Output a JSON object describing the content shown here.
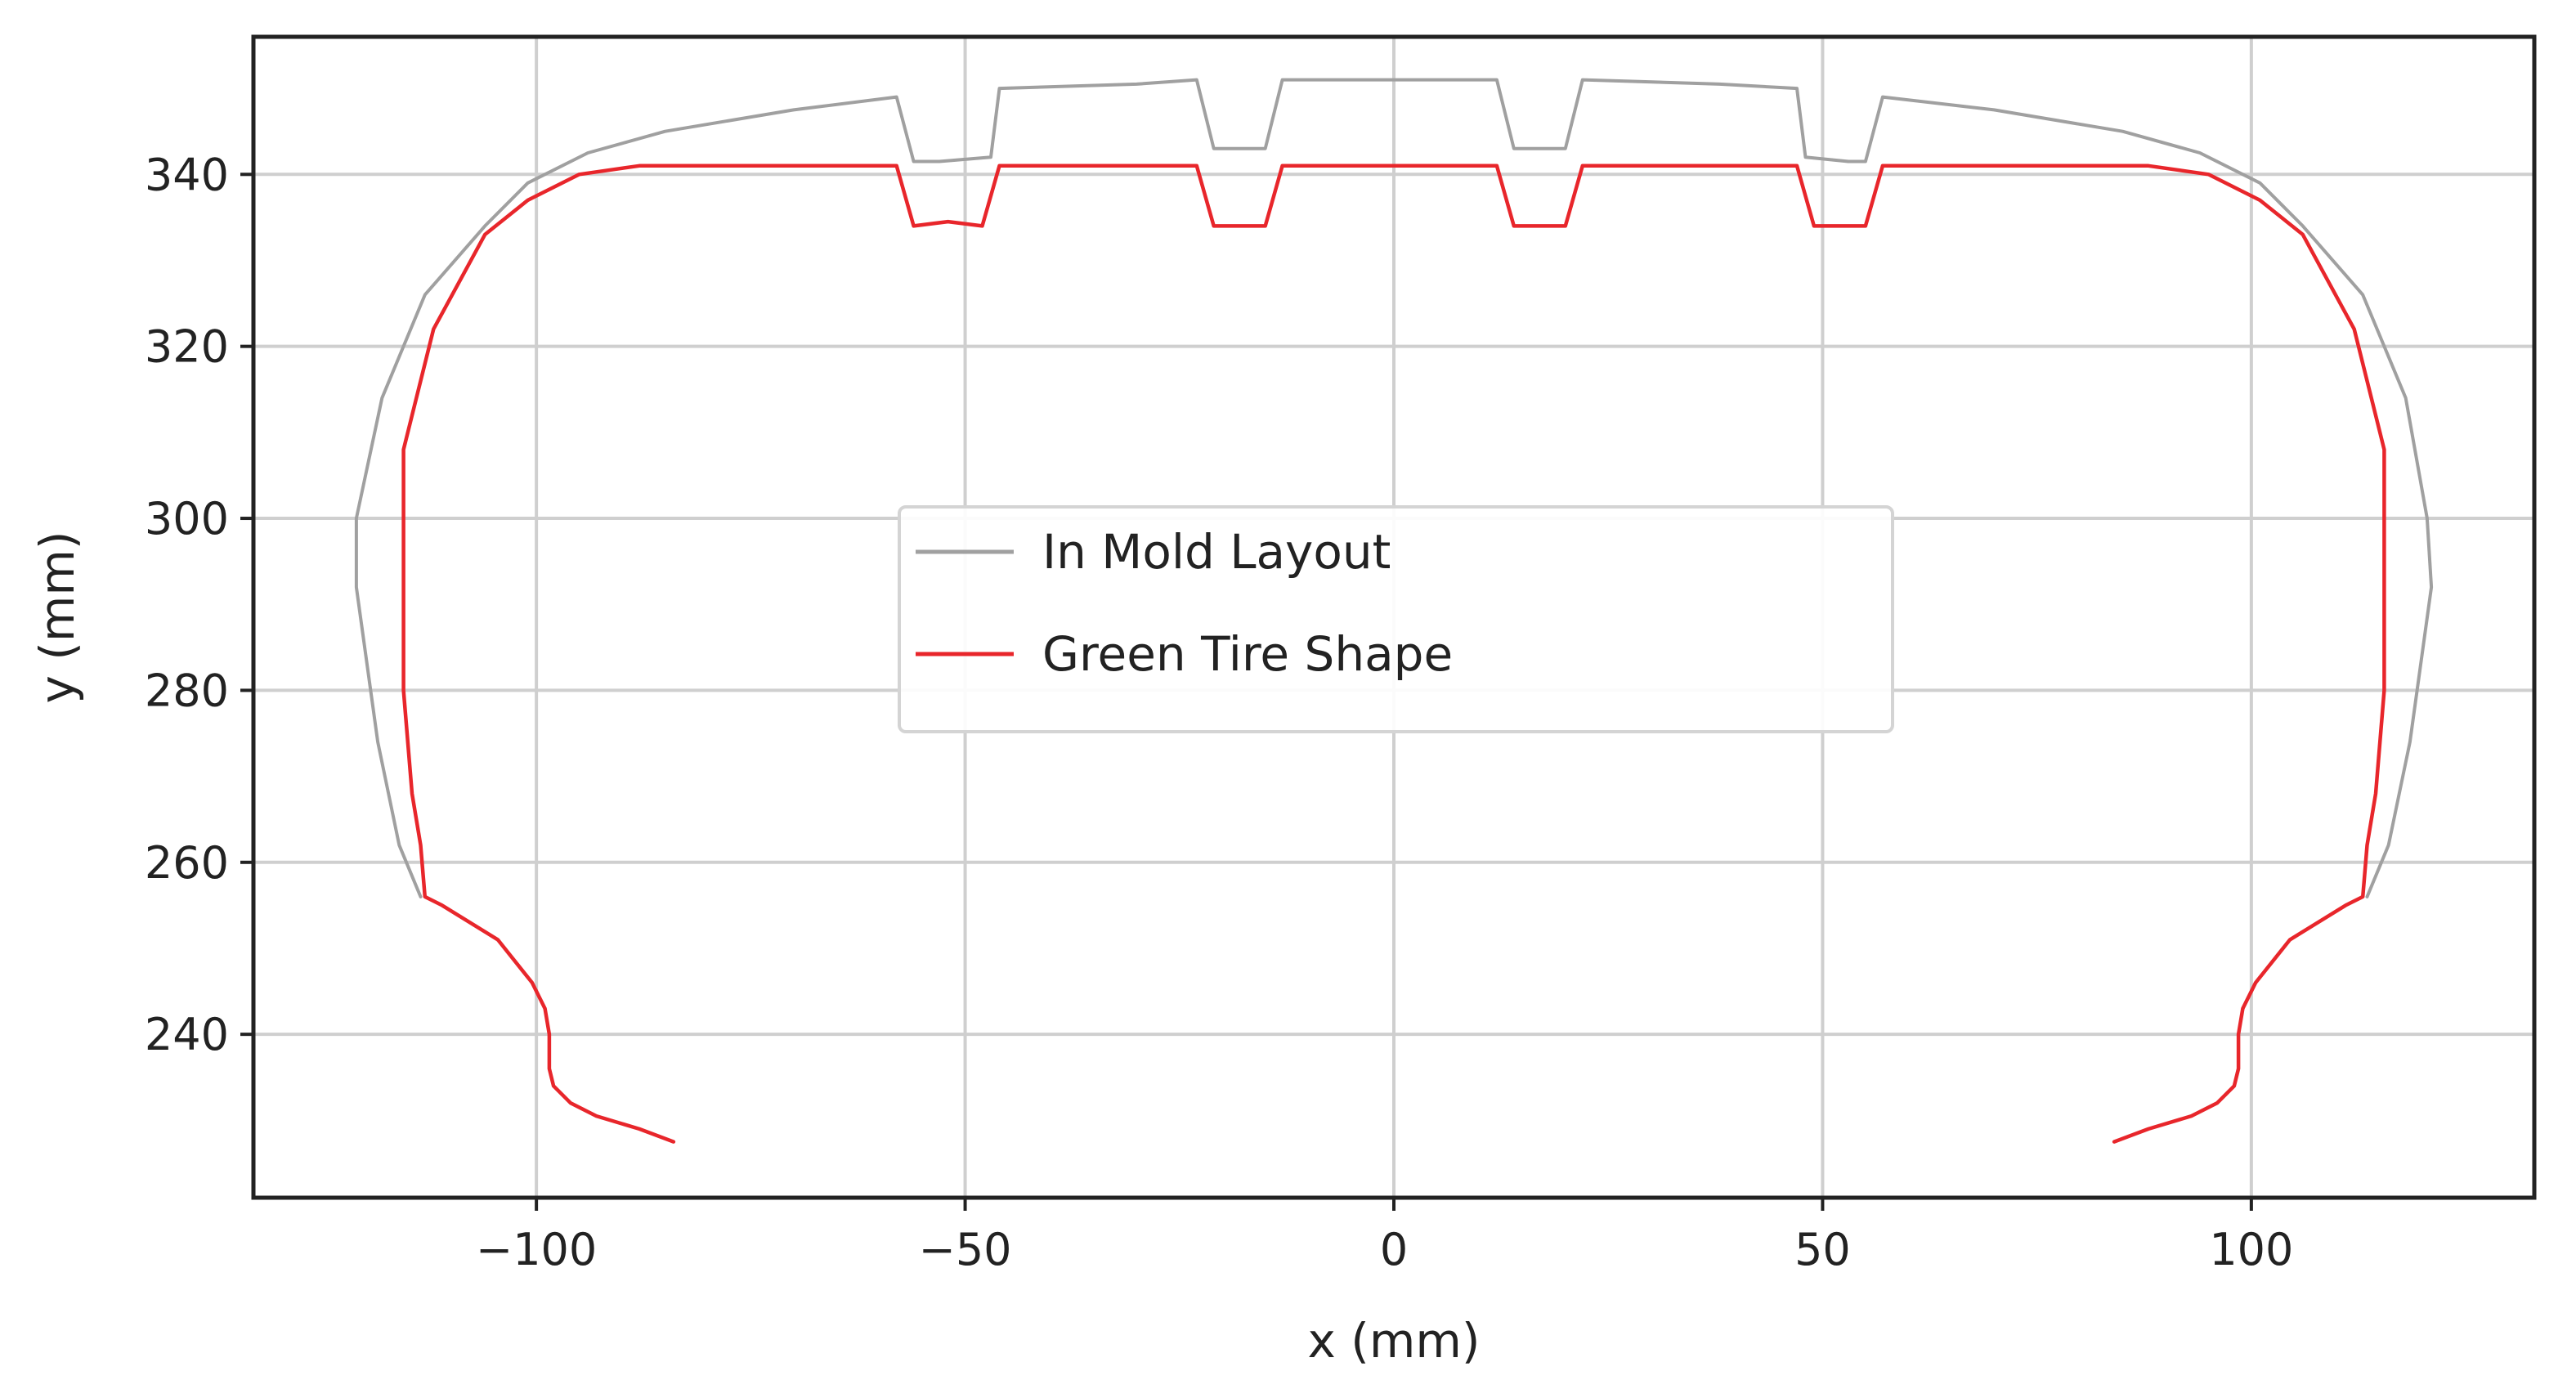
{
  "chart_data": {
    "type": "line",
    "xlabel": "x (mm)",
    "ylabel": "y (mm)",
    "xlim": [
      -133,
      133
    ],
    "ylim": [
      221,
      356
    ],
    "xticks": [
      -100,
      -50,
      0,
      50,
      100
    ],
    "yticks": [
      240,
      260,
      280,
      300,
      320,
      340
    ],
    "xtick_labels": [
      "−100",
      "−50",
      "0",
      "50",
      "100"
    ],
    "ytick_labels": [
      "240",
      "260",
      "280",
      "300",
      "320",
      "340"
    ],
    "grid": true,
    "legend_position": "center",
    "series": [
      {
        "name": "In Mold Layout",
        "color": "#a0a0a0",
        "points": [
          [
            -113.5,
            256
          ],
          [
            -116,
            262
          ],
          [
            -118.5,
            274
          ],
          [
            -121,
            292
          ],
          [
            -121,
            300
          ],
          [
            -118,
            314
          ],
          [
            -113,
            326
          ],
          [
            -106,
            334
          ],
          [
            -101,
            339
          ],
          [
            -94,
            342.5
          ],
          [
            -85,
            345
          ],
          [
            -70,
            347.5
          ],
          [
            -58,
            349
          ],
          [
            -56,
            341.5
          ],
          [
            -53,
            341.5
          ],
          [
            -47,
            342
          ],
          [
            -46,
            350
          ],
          [
            -30,
            350.5
          ],
          [
            -23,
            351
          ],
          [
            -21,
            343
          ],
          [
            -15,
            343
          ],
          [
            -13,
            351
          ],
          [
            12,
            351
          ],
          [
            14,
            343
          ],
          [
            20,
            343
          ],
          [
            22,
            351
          ],
          [
            38,
            350.5
          ],
          [
            47,
            350
          ],
          [
            48,
            342
          ],
          [
            53,
            341.5
          ],
          [
            55,
            341.5
          ],
          [
            57,
            349
          ],
          [
            70,
            347.5
          ],
          [
            85,
            345
          ],
          [
            94,
            342.5
          ],
          [
            101,
            339
          ],
          [
            106,
            334
          ],
          [
            113,
            326
          ],
          [
            118,
            314
          ],
          [
            120.5,
            300
          ],
          [
            121,
            292
          ],
          [
            118.5,
            274
          ],
          [
            116,
            262
          ],
          [
            113.5,
            256
          ]
        ]
      },
      {
        "name": "Green Tire Shape",
        "color": "#e8262b",
        "points": [
          [
            -84,
            227.5
          ],
          [
            -88,
            229
          ],
          [
            -93,
            230.5
          ],
          [
            -96,
            232
          ],
          [
            -98,
            234
          ],
          [
            -98.5,
            236
          ],
          [
            -98.5,
            240
          ],
          [
            -99,
            243
          ],
          [
            -100.5,
            246
          ],
          [
            -104.5,
            251
          ],
          [
            -111,
            255
          ],
          [
            -113,
            256
          ],
          [
            -113.5,
            262
          ],
          [
            -114.5,
            268
          ],
          [
            -115.5,
            280
          ],
          [
            -115.5,
            308
          ],
          [
            -112,
            322
          ],
          [
            -106,
            333
          ],
          [
            -101,
            337
          ],
          [
            -95,
            340
          ],
          [
            -88,
            341
          ],
          [
            -58,
            341
          ],
          [
            -56,
            334
          ],
          [
            -52,
            334.5
          ],
          [
            -48,
            334
          ],
          [
            -46,
            341
          ],
          [
            -23,
            341
          ],
          [
            -21,
            334
          ],
          [
            -15,
            334
          ],
          [
            -13,
            341
          ],
          [
            12,
            341
          ],
          [
            14,
            334
          ],
          [
            20,
            334
          ],
          [
            22,
            341
          ],
          [
            47,
            341
          ],
          [
            49,
            334
          ],
          [
            55,
            334
          ],
          [
            57,
            341
          ],
          [
            88,
            341
          ],
          [
            95,
            340
          ],
          [
            101,
            337
          ],
          [
            106,
            333
          ],
          [
            112,
            322
          ],
          [
            115.5,
            308
          ],
          [
            115.5,
            280
          ],
          [
            114.5,
            268
          ],
          [
            113.5,
            262
          ],
          [
            113,
            256
          ],
          [
            111,
            255
          ],
          [
            104.5,
            251
          ],
          [
            100.5,
            246
          ],
          [
            99,
            243
          ],
          [
            98.5,
            240
          ],
          [
            98.5,
            236
          ],
          [
            98,
            234
          ],
          [
            96,
            232
          ],
          [
            93,
            230.5
          ],
          [
            88,
            229
          ],
          [
            84,
            227.5
          ]
        ]
      }
    ]
  }
}
